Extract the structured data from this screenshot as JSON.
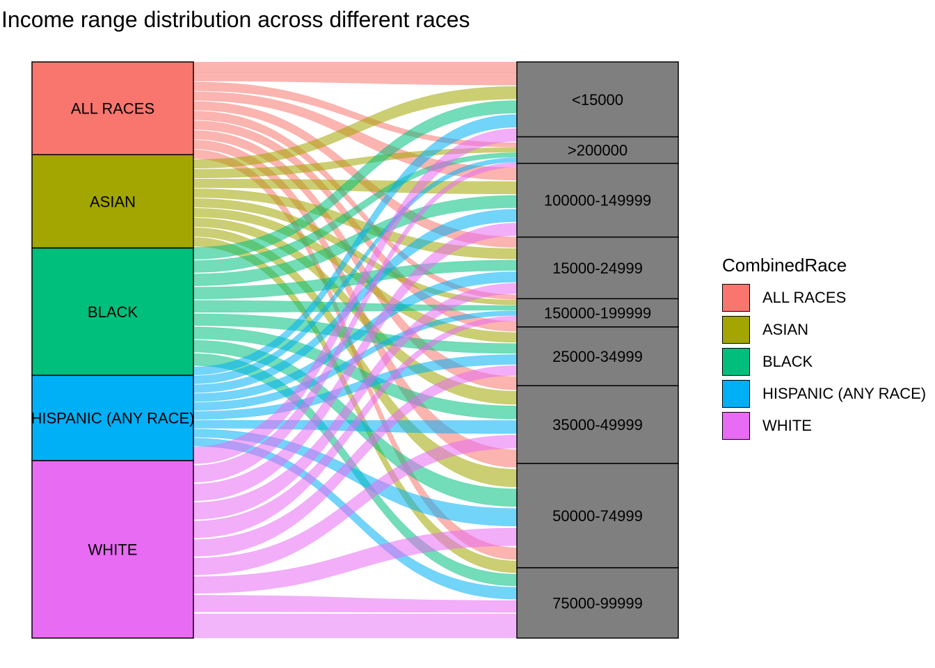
{
  "title": "Income range distribution across different races",
  "chart_data": {
    "type": "alluvial",
    "title": "Income range distribution across different races",
    "legend_title": "CombinedRace",
    "legend_position": "right",
    "axis1": {
      "name": "CombinedRace",
      "categories": [
        "ALL RACES",
        "ASIAN",
        "BLACK",
        "HISPANIC (ANY RACE)",
        "WHITE"
      ],
      "weights": [
        16.1,
        16.2,
        22.1,
        14.8,
        30.8
      ]
    },
    "axis2": {
      "name": "Income range",
      "categories": [
        "<15000",
        ">200000",
        "100000-149999",
        "15000-24999",
        "150000-199999",
        "25000-34999",
        "35000-49999",
        "50000-74999",
        "75000-99999"
      ],
      "weights": [
        13.0,
        4.6,
        12.8,
        10.7,
        4.9,
        10.2,
        13.5,
        18.1,
        12.2
      ]
    },
    "colors": {
      "ALL RACES": "#F8766D",
      "ASIAN": "#A3A500",
      "BLACK": "#00BF7D",
      "HISPANIC (ANY RACE)": "#00B0F6",
      "WHITE": "#E76BF3",
      "income_box": "#7f7f7f"
    }
  }
}
